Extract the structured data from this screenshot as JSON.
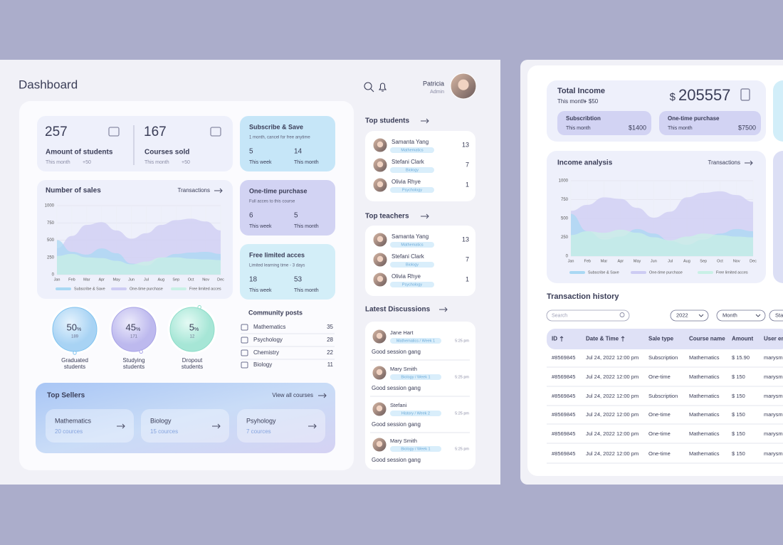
{
  "header": {
    "title": "Dashboard",
    "user_name": "Patricia",
    "user_role": "Admin"
  },
  "stats": [
    {
      "value": 257,
      "label": "Amount of students",
      "period": "This month",
      "change": "+50"
    },
    {
      "value": 167,
      "label": "Courses sold",
      "period": "This month",
      "change": "+50"
    }
  ],
  "offers": [
    {
      "title": "Subscribe & Save",
      "subtitle": "1 month, cancel for free anytime",
      "week": 5,
      "week_label": "This week",
      "month": 14,
      "month_label": "This month"
    },
    {
      "title": "One-time purchase",
      "subtitle": "Full acces to this course",
      "week": 6,
      "week_label": "This week",
      "month": 5,
      "month_label": "This month"
    },
    {
      "title": "Free limited acces",
      "subtitle": "Limited learning time - 3 days",
      "week": 18,
      "week_label": "This week",
      "month": 53,
      "month_label": "This month"
    }
  ],
  "sales_chart": {
    "title": "Number of sales",
    "link": "Transactions",
    "categories": [
      "Jan",
      "Feb",
      "Mar",
      "Apr",
      "May",
      "Jun",
      "Jul",
      "Aug",
      "Sep",
      "Oct",
      "Nov",
      "Dec"
    ],
    "ylim": [
      0,
      1000
    ],
    "yticks": [
      0,
      250,
      500,
      750,
      1000
    ],
    "series": [
      {
        "name": "Subscribe & Save",
        "color": "#a9d8f3",
        "values": [
          500,
          330,
          290,
          380,
          310,
          160,
          130,
          240,
          300,
          320,
          330,
          300
        ]
      },
      {
        "name": "One-time purchase",
        "color": "#cdccf3",
        "values": [
          380,
          560,
          720,
          760,
          640,
          520,
          600,
          720,
          790,
          810,
          770,
          640
        ]
      },
      {
        "name": "Free limited acces",
        "color": "#c9f0e6",
        "values": [
          270,
          300,
          250,
          240,
          200,
          150,
          190,
          250,
          250,
          230,
          220,
          210
        ]
      }
    ]
  },
  "students": [
    {
      "percent": 50,
      "unit": "%",
      "count": 189,
      "label": [
        "Graduated",
        "students"
      ]
    },
    {
      "percent": 45,
      "unit": "%",
      "count": 171,
      "label": [
        "Studying",
        "students"
      ]
    },
    {
      "percent": 5,
      "unit": "%",
      "count": 12,
      "label": [
        "Dropout",
        "students"
      ]
    }
  ],
  "community": {
    "title": "Community posts",
    "items": [
      {
        "name": "Mathematics",
        "count": 35
      },
      {
        "name": "Psychology",
        "count": 28
      },
      {
        "name": "Chemistry",
        "count": 22
      },
      {
        "name": "Biology",
        "count": 11
      }
    ]
  },
  "top_sellers": {
    "title": "Top Sellers",
    "link": "View all courses",
    "items": [
      {
        "name": "Mathematics",
        "courses": "20 cources"
      },
      {
        "name": "Biology",
        "courses": "15 cources"
      },
      {
        "name": "Psyhology",
        "courses": "7 cources"
      }
    ]
  },
  "top_students": {
    "title": "Top students",
    "items": [
      {
        "name": "Samanta Yang",
        "subject": "Mathematics",
        "count": 13
      },
      {
        "name": "Stefani Clark",
        "subject": "Biology",
        "count": 7
      },
      {
        "name": "Olivia Rhye",
        "subject": "Psychology",
        "count": 1
      }
    ]
  },
  "top_teachers": {
    "title": "Top teachers",
    "items": [
      {
        "name": "Samanta Yang",
        "subject": "Mathematics",
        "count": 13
      },
      {
        "name": "Stefani Clark",
        "subject": "Biology",
        "count": 7
      },
      {
        "name": "Olivia Rhye",
        "subject": "Psychology",
        "count": 1
      }
    ]
  },
  "discussions": {
    "title": "Latest Discussions",
    "items": [
      {
        "name": "Jane Hart",
        "tag": "Mathematics / Week 1",
        "time": "5:25 pm",
        "text": "Good session gang"
      },
      {
        "name": "Mary Smith",
        "tag": "Biology / Week 1",
        "time": "5:25 pm",
        "text": "Good session gang"
      },
      {
        "name": "Stefani",
        "tag": "History / Week 2",
        "time": "5:25 pm",
        "text": "Good session gang"
      },
      {
        "name": "Mary Smith",
        "tag": "Biology / Week 1",
        "time": "5:25 pm",
        "text": "Good session gang"
      }
    ]
  },
  "income": {
    "title": "Total Income",
    "period": "This month",
    "change": "+ $50",
    "currency": "$",
    "value": 205557,
    "parts": [
      {
        "name": "Subscribtion",
        "period": "This month",
        "amount": "$1400"
      },
      {
        "name": "One-time purchase",
        "period": "This month",
        "amount": "$7500"
      }
    ]
  },
  "income_chart": {
    "title": "Income analysis",
    "link": "Transactions",
    "categories": [
      "Jan",
      "Feb",
      "Mar",
      "Apr",
      "May",
      "Jun",
      "Jul",
      "Aug",
      "Sep",
      "Oct",
      "Nov",
      "Dec"
    ],
    "ylim": [
      0,
      1000
    ],
    "yticks": [
      0,
      250,
      500,
      750,
      1000
    ],
    "series": [
      {
        "name": "Subscribe & Save",
        "color": "#a9d8f3",
        "values": [
          560,
          330,
          220,
          260,
          360,
          300,
          200,
          150,
          220,
          300,
          360,
          330
        ]
      },
      {
        "name": "One-time purchase",
        "color": "#cdccf3",
        "values": [
          600,
          680,
          780,
          760,
          640,
          510,
          590,
          780,
          840,
          860,
          810,
          720
        ]
      },
      {
        "name": "Free limited acces",
        "color": "#c9f0e6",
        "values": [
          280,
          330,
          310,
          350,
          310,
          250,
          210,
          260,
          300,
          280,
          260,
          250
        ]
      }
    ]
  },
  "transactions": {
    "title": "Transaction history",
    "search": "Search",
    "filters": [
      "2022",
      "Month",
      "Sta"
    ],
    "columns": [
      "ID",
      "Date & Time",
      "Sale type",
      "Course name",
      "Amount",
      "User em"
    ],
    "rows": [
      [
        "#8569845",
        "Jul 24, 2022 12:00 pm",
        "Subscription",
        "Mathematics",
        "$ 15.90",
        "marysm"
      ],
      [
        "#8569845",
        "Jul 24, 2022 12:00 pm",
        "One-time",
        "Mathematics",
        "$ 150",
        "marysm"
      ],
      [
        "#8569845",
        "Jul 24, 2022 12:00 pm",
        "Subscription",
        "Mathematics",
        "$ 150",
        "marysm"
      ],
      [
        "#8569845",
        "Jul 24, 2022 12:00 pm",
        "One-time",
        "Mathematics",
        "$ 150",
        "marysm"
      ],
      [
        "#8569845",
        "Jul 24, 2022 12:00 pm",
        "One-time",
        "Mathematics",
        "$ 150",
        "marysm"
      ],
      [
        "#8569845",
        "Jul 24, 2022 12:00 pm",
        "One-time",
        "Mathematics",
        "$ 150",
        "marysm"
      ]
    ]
  }
}
